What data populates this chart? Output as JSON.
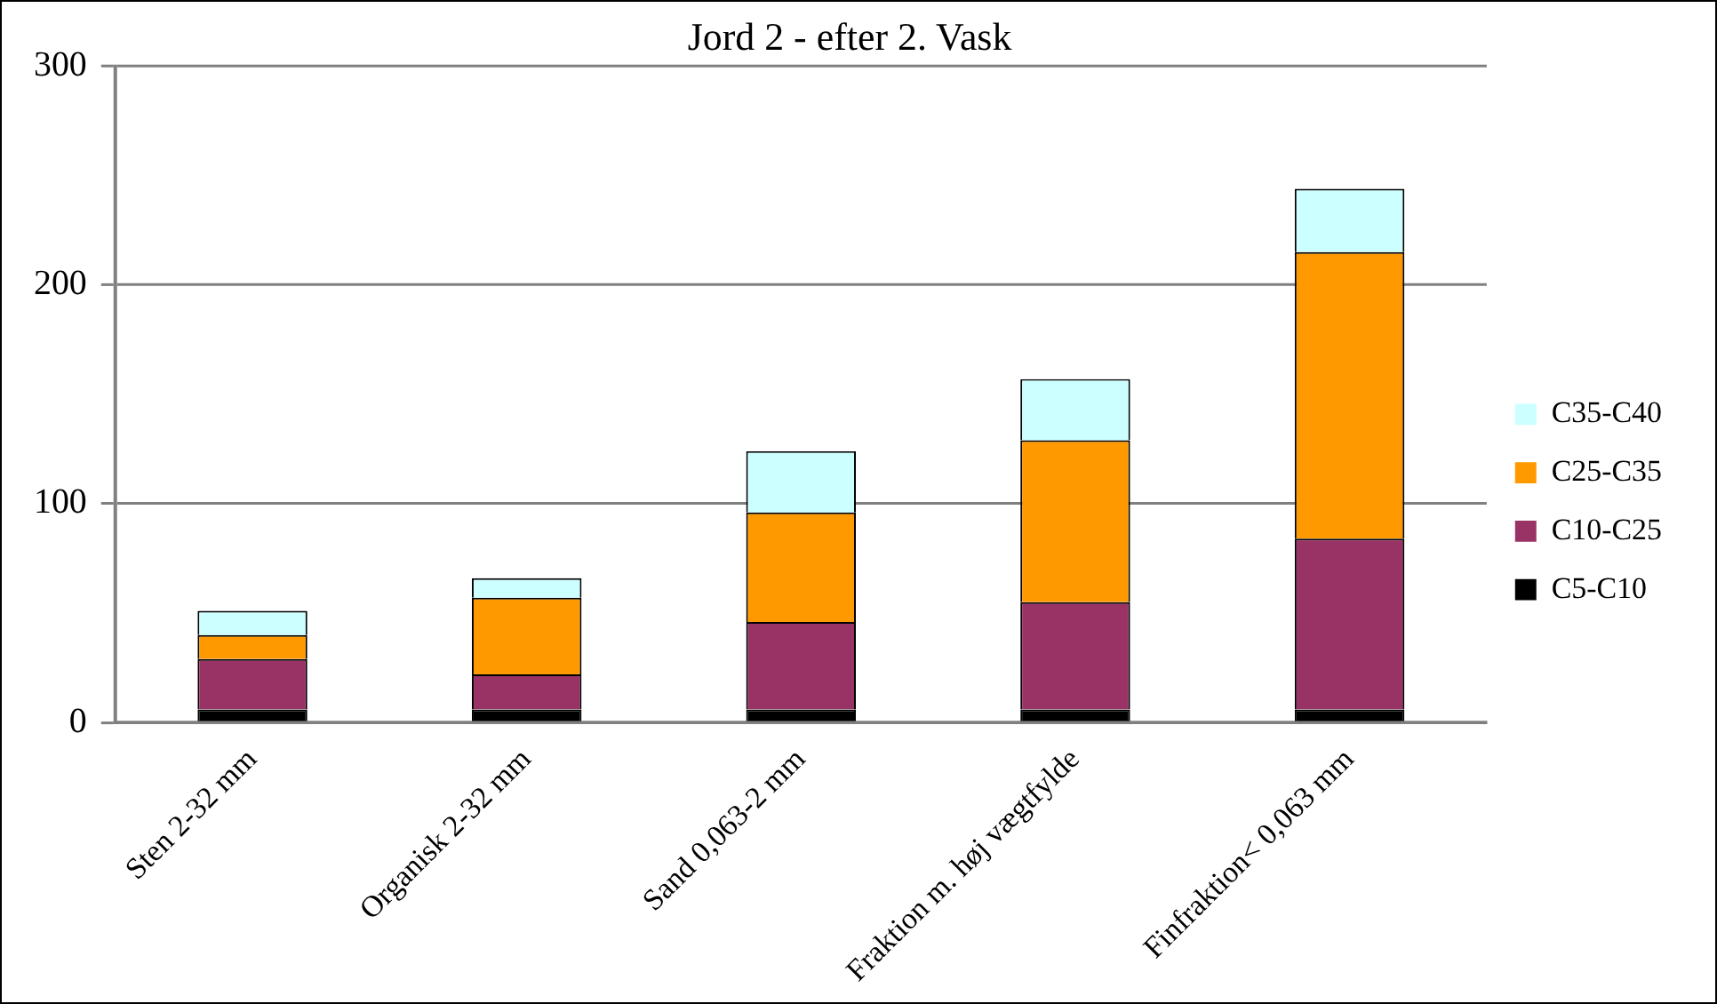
{
  "chart_data": {
    "type": "bar",
    "title": "Jord 2 - efter 2. Vask",
    "stacked": true,
    "categories": [
      "Sten 2-32 mm",
      "Organisk 2-32 mm",
      "Sand 0,063-2 mm",
      "Fraktion m. høj vægtfylde",
      "Finfraktion< 0,063 mm"
    ],
    "series": [
      {
        "name": "C5-C10",
        "color": "#000000",
        "values": [
          6,
          6,
          6,
          6,
          6
        ]
      },
      {
        "name": "C10-C25",
        "color": "#993366",
        "values": [
          23,
          16,
          40,
          49,
          78
        ]
      },
      {
        "name": "C25-C35",
        "color": "#ff9900",
        "values": [
          11,
          35,
          50,
          74,
          131
        ]
      },
      {
        "name": "C35-C40",
        "color": "#ccffff",
        "values": [
          11,
          9,
          28,
          28,
          29
        ]
      }
    ],
    "ylim": [
      0,
      300
    ],
    "yticks": [
      0,
      100,
      200,
      300
    ],
    "grid": "y",
    "legend": "right"
  }
}
